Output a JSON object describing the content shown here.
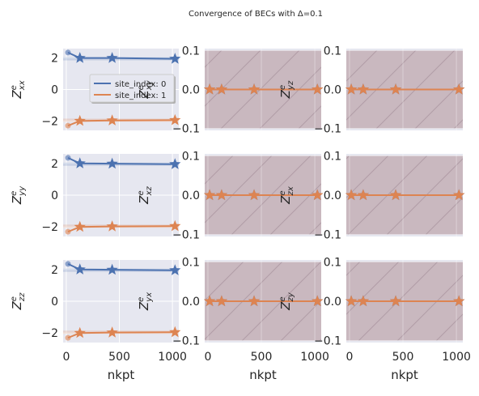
{
  "figure": {
    "title": "Convergence of BECs with Δ=0.1",
    "colors": {
      "background": "#ffffff",
      "axes_face": "#e6e7f0",
      "grid": "#ffffff",
      "blue": "#4c72b0",
      "orange": "#dd8452",
      "hatch_fill": "#c9b8bf",
      "hatch_line": "#b19da6"
    }
  },
  "chart_data": [
    {
      "type": "line",
      "panel": "xx",
      "ylabel": "Z^e_xx",
      "xlabel": "",
      "xlim": [
        -30,
        1060
      ],
      "ylim": [
        -2.6,
        2.6
      ],
      "xticks": [
        0,
        500,
        1000
      ],
      "yticks": [
        -2,
        0,
        2
      ],
      "yticklabels": [
        "−2",
        "0",
        "2"
      ],
      "hatched": false,
      "show_xticklabels": false,
      "series": [
        {
          "name": "site_index: 0",
          "color": "blue",
          "band": [
            1.85,
            2.05
          ],
          "points": [
            {
              "x": 16,
              "y": 2.35,
              "marker": "circle"
            },
            {
              "x": 128,
              "y": 2.0,
              "marker": "star"
            },
            {
              "x": 432,
              "y": 2.0,
              "marker": "star"
            },
            {
              "x": 1024,
              "y": 1.95,
              "marker": "star"
            }
          ]
        },
        {
          "name": "site_index: 1",
          "color": "orange",
          "band": [
            -2.05,
            -1.85
          ],
          "points": [
            {
              "x": 16,
              "y": -2.3,
              "marker": "circle"
            },
            {
              "x": 128,
              "y": -2.0,
              "marker": "star"
            },
            {
              "x": 432,
              "y": -1.97,
              "marker": "star"
            },
            {
              "x": 1024,
              "y": -1.95,
              "marker": "star"
            }
          ]
        }
      ],
      "legend": {
        "placement": "center-right",
        "entries": [
          "site_index: 0",
          "site_index: 1"
        ]
      }
    },
    {
      "type": "line",
      "panel": "xy",
      "ylabel": "Z^e_xy",
      "xlabel": "",
      "xlim": [
        -30,
        1060
      ],
      "ylim": [
        -0.105,
        0.105
      ],
      "xticks": [
        0,
        500,
        1000
      ],
      "yticks": [
        -0.1,
        0.0,
        0.1
      ],
      "yticklabels": [
        "−0.1",
        "0.0",
        "0.1"
      ],
      "hatched": true,
      "show_xticklabels": false,
      "series": [
        {
          "color": "blue",
          "points": [
            {
              "x": 16,
              "y": 0
            },
            {
              "x": 128,
              "y": 0
            },
            {
              "x": 432,
              "y": 0
            },
            {
              "x": 1024,
              "y": 0
            }
          ]
        },
        {
          "color": "orange",
          "points": [
            {
              "x": 16,
              "y": 0
            },
            {
              "x": 128,
              "y": 0
            },
            {
              "x": 432,
              "y": 0
            },
            {
              "x": 1024,
              "y": 0
            }
          ]
        }
      ]
    },
    {
      "type": "line",
      "panel": "xz",
      "ylabel": "Z^e_yz",
      "xlabel": "",
      "xlim": [
        -30,
        1060
      ],
      "ylim": [
        -0.105,
        0.105
      ],
      "xticks": [
        0,
        500,
        1000
      ],
      "yticks": [
        -0.1,
        0.0,
        0.1
      ],
      "yticklabels": [
        "−0.1",
        "0.0",
        "0.1"
      ],
      "hatched": true,
      "show_xticklabels": false,
      "series": [
        {
          "color": "blue",
          "points": [
            {
              "x": 16,
              "y": 0
            },
            {
              "x": 128,
              "y": 0
            },
            {
              "x": 432,
              "y": 0
            },
            {
              "x": 1024,
              "y": 0
            }
          ]
        },
        {
          "color": "orange",
          "points": [
            {
              "x": 16,
              "y": 0
            },
            {
              "x": 128,
              "y": 0
            },
            {
              "x": 432,
              "y": 0
            },
            {
              "x": 1024,
              "y": 0
            }
          ]
        }
      ]
    },
    {
      "type": "line",
      "panel": "yy",
      "ylabel": "Z^e_yy",
      "xlabel": "",
      "xlim": [
        -30,
        1060
      ],
      "ylim": [
        -2.6,
        2.6
      ],
      "xticks": [
        0,
        500,
        1000
      ],
      "yticks": [
        -2,
        0,
        2
      ],
      "yticklabels": [
        "−2",
        "0",
        "2"
      ],
      "hatched": false,
      "show_xticklabels": false,
      "series": [
        {
          "color": "blue",
          "band": [
            1.85,
            2.05
          ],
          "points": [
            {
              "x": 16,
              "y": 2.35,
              "marker": "circle"
            },
            {
              "x": 128,
              "y": 2.0,
              "marker": "star"
            },
            {
              "x": 432,
              "y": 1.98,
              "marker": "star"
            },
            {
              "x": 1024,
              "y": 1.95,
              "marker": "star"
            }
          ]
        },
        {
          "color": "orange",
          "band": [
            -2.05,
            -1.85
          ],
          "points": [
            {
              "x": 16,
              "y": -2.3,
              "marker": "circle"
            },
            {
              "x": 128,
              "y": -2.0,
              "marker": "star"
            },
            {
              "x": 432,
              "y": -1.97,
              "marker": "star"
            },
            {
              "x": 1024,
              "y": -1.95,
              "marker": "star"
            }
          ]
        }
      ]
    },
    {
      "type": "line",
      "panel": "yx",
      "ylabel": "Z^e_xz",
      "xlabel": "",
      "xlim": [
        -30,
        1060
      ],
      "ylim": [
        -0.105,
        0.105
      ],
      "xticks": [
        0,
        500,
        1000
      ],
      "yticks": [
        -0.1,
        0.0,
        0.1
      ],
      "yticklabels": [
        "−0.1",
        "0.0",
        "0.1"
      ],
      "hatched": true,
      "show_xticklabels": false,
      "series": [
        {
          "color": "blue",
          "points": [
            {
              "x": 16,
              "y": 0
            },
            {
              "x": 128,
              "y": 0
            },
            {
              "x": 432,
              "y": 0
            },
            {
              "x": 1024,
              "y": 0
            }
          ]
        },
        {
          "color": "orange",
          "points": [
            {
              "x": 16,
              "y": 0
            },
            {
              "x": 128,
              "y": 0
            },
            {
              "x": 432,
              "y": 0
            },
            {
              "x": 1024,
              "y": 0
            }
          ]
        }
      ]
    },
    {
      "type": "line",
      "panel": "yz",
      "ylabel": "Z^e_zx",
      "xlabel": "",
      "xlim": [
        -30,
        1060
      ],
      "ylim": [
        -0.105,
        0.105
      ],
      "xticks": [
        0,
        500,
        1000
      ],
      "yticks": [
        -0.1,
        0.0,
        0.1
      ],
      "yticklabels": [
        "−0.1",
        "0.0",
        "0.1"
      ],
      "hatched": true,
      "show_xticklabels": false,
      "series": [
        {
          "color": "blue",
          "points": [
            {
              "x": 16,
              "y": 0
            },
            {
              "x": 128,
              "y": 0
            },
            {
              "x": 432,
              "y": 0
            },
            {
              "x": 1024,
              "y": 0
            }
          ]
        },
        {
          "color": "orange",
          "points": [
            {
              "x": 16,
              "y": 0
            },
            {
              "x": 128,
              "y": 0
            },
            {
              "x": 432,
              "y": 0
            },
            {
              "x": 1024,
              "y": 0
            }
          ]
        }
      ]
    },
    {
      "type": "line",
      "panel": "zz",
      "ylabel": "Z^e_zz",
      "xlabel": "nkpt",
      "xlim": [
        -30,
        1060
      ],
      "ylim": [
        -2.6,
        2.6
      ],
      "xticks": [
        0,
        500,
        1000
      ],
      "yticks": [
        -2,
        0,
        2
      ],
      "yticklabels": [
        "−2",
        "0",
        "2"
      ],
      "hatched": false,
      "show_xticklabels": true,
      "xticklabels": [
        "0",
        "500",
        "1000"
      ],
      "series": [
        {
          "color": "blue",
          "band": [
            1.85,
            2.05
          ],
          "points": [
            {
              "x": 16,
              "y": 2.35,
              "marker": "circle"
            },
            {
              "x": 128,
              "y": 2.0,
              "marker": "star"
            },
            {
              "x": 432,
              "y": 1.98,
              "marker": "star"
            },
            {
              "x": 1024,
              "y": 1.95,
              "marker": "star"
            }
          ]
        },
        {
          "color": "orange",
          "band": [
            -2.05,
            -1.85
          ],
          "points": [
            {
              "x": 16,
              "y": -2.3,
              "marker": "circle"
            },
            {
              "x": 128,
              "y": -2.0,
              "marker": "star"
            },
            {
              "x": 432,
              "y": -1.97,
              "marker": "star"
            },
            {
              "x": 1024,
              "y": -1.95,
              "marker": "star"
            }
          ]
        }
      ]
    },
    {
      "type": "line",
      "panel": "zx",
      "ylabel": "Z^e_yx",
      "xlabel": "nkpt",
      "xlim": [
        -30,
        1060
      ],
      "ylim": [
        -0.105,
        0.105
      ],
      "xticks": [
        0,
        500,
        1000
      ],
      "yticks": [
        -0.1,
        0.0,
        0.1
      ],
      "yticklabels": [
        "−0.1",
        "0.0",
        "0.1"
      ],
      "hatched": true,
      "show_xticklabels": true,
      "xticklabels": [
        "0",
        "500",
        "1000"
      ],
      "series": [
        {
          "color": "blue",
          "points": [
            {
              "x": 16,
              "y": 0
            },
            {
              "x": 128,
              "y": 0
            },
            {
              "x": 432,
              "y": 0
            },
            {
              "x": 1024,
              "y": 0
            }
          ]
        },
        {
          "color": "orange",
          "points": [
            {
              "x": 16,
              "y": 0
            },
            {
              "x": 128,
              "y": 0
            },
            {
              "x": 432,
              "y": 0
            },
            {
              "x": 1024,
              "y": 0
            }
          ]
        }
      ]
    },
    {
      "type": "line",
      "panel": "zy",
      "ylabel": "Z^e_zy",
      "xlabel": "nkpt",
      "xlim": [
        -30,
        1060
      ],
      "ylim": [
        -0.105,
        0.105
      ],
      "xticks": [
        0,
        500,
        1000
      ],
      "yticks": [
        -0.1,
        0.0,
        0.1
      ],
      "yticklabels": [
        "−0.1",
        "0.0",
        "0.1"
      ],
      "hatched": true,
      "show_xticklabels": true,
      "xticklabels": [
        "0",
        "500",
        "1000"
      ],
      "series": [
        {
          "color": "blue",
          "points": [
            {
              "x": 16,
              "y": 0
            },
            {
              "x": 128,
              "y": 0
            },
            {
              "x": 432,
              "y": 0
            },
            {
              "x": 1024,
              "y": 0
            }
          ]
        },
        {
          "color": "orange",
          "points": [
            {
              "x": 16,
              "y": 0
            },
            {
              "x": 128,
              "y": 0
            },
            {
              "x": 432,
              "y": 0
            },
            {
              "x": 1024,
              "y": 0
            }
          ]
        }
      ]
    }
  ]
}
